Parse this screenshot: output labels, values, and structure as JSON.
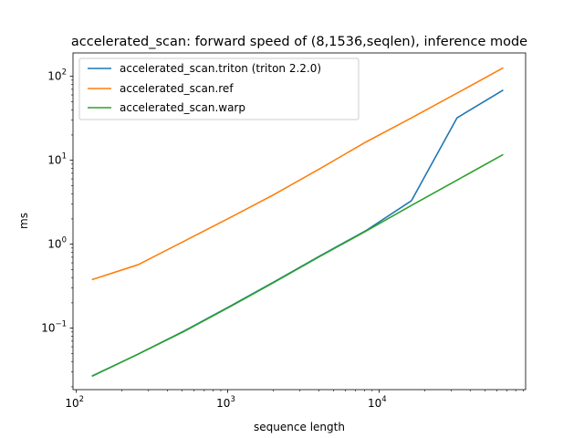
{
  "chart_data": {
    "type": "line",
    "title": "accelerated_scan: forward speed of (8,1536,seqlen), inference mode",
    "xlabel": "sequence length",
    "ylabel": "ms",
    "xscale": "log",
    "yscale": "log",
    "xlim": [
      95,
      93000
    ],
    "ylim": [
      0.0185,
      190
    ],
    "x_ticks": [
      {
        "value": 100,
        "base": "10",
        "exp": "2"
      },
      {
        "value": 1000,
        "base": "10",
        "exp": "3"
      },
      {
        "value": 10000,
        "base": "10",
        "exp": "4"
      }
    ],
    "y_ticks": [
      {
        "value": 0.1,
        "base": "10",
        "exp": "−1"
      },
      {
        "value": 1,
        "base": "10",
        "exp": "0"
      },
      {
        "value": 10,
        "base": "10",
        "exp": "1"
      },
      {
        "value": 100,
        "base": "10",
        "exp": "2"
      }
    ],
    "grid": false,
    "legend_position": "top-left",
    "x": [
      128,
      256,
      512,
      1024,
      2048,
      4096,
      8192,
      16384,
      32768,
      65536
    ],
    "series": [
      {
        "name": "accelerated_scan.triton (triton 2.2.0)",
        "color": "#1f77b4",
        "values": [
          0.027,
          0.049,
          0.092,
          0.18,
          0.36,
          0.73,
          1.45,
          3.3,
          32,
          68
        ]
      },
      {
        "name": "accelerated_scan.ref",
        "color": "#ff7f0e",
        "values": [
          0.38,
          0.57,
          1.08,
          2.05,
          3.95,
          8.0,
          16.5,
          32,
          63,
          125
        ]
      },
      {
        "name": "accelerated_scan.warp",
        "color": "#2ca02c",
        "values": [
          0.027,
          0.049,
          0.091,
          0.178,
          0.355,
          0.72,
          1.43,
          2.9,
          5.8,
          11.6
        ]
      }
    ]
  }
}
